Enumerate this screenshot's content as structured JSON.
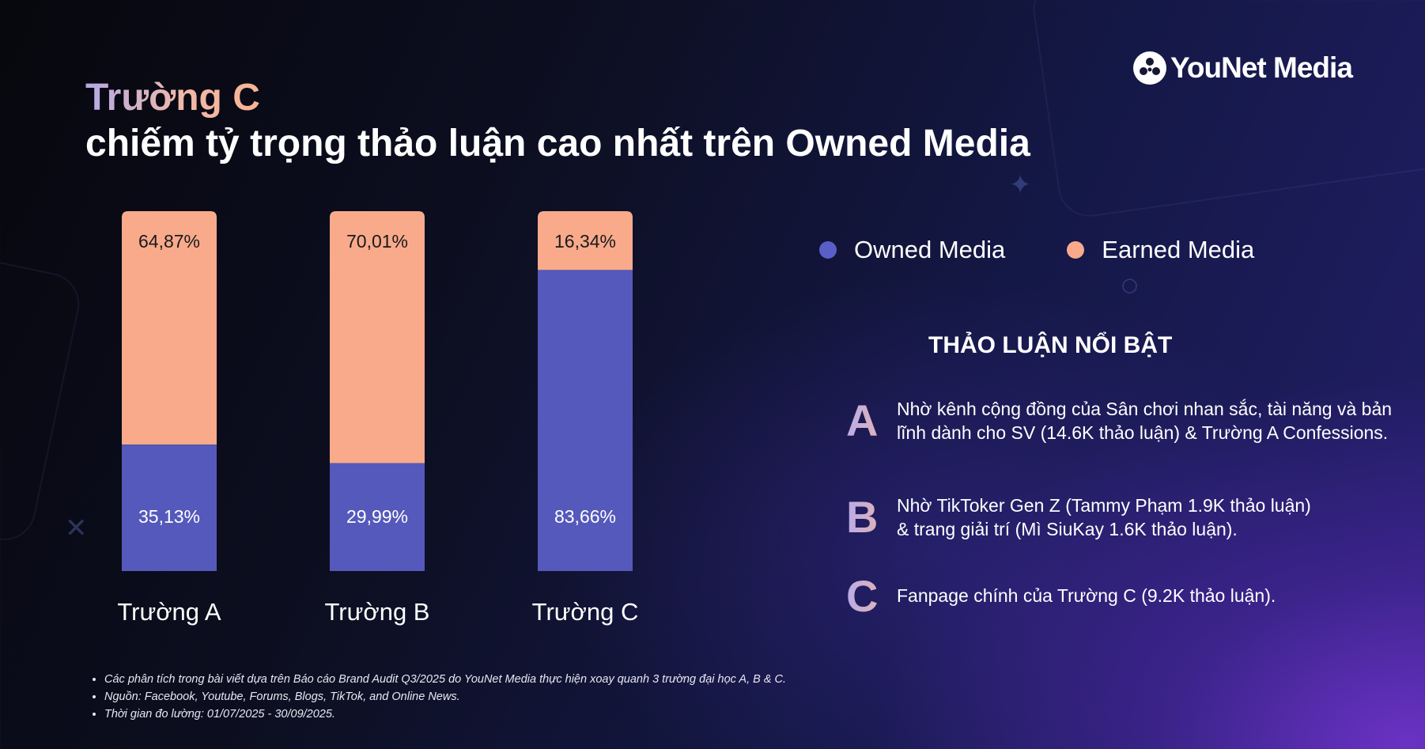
{
  "brand": {
    "logo_text": "YouNet Media"
  },
  "title": {
    "line1": "Trường C",
    "line2": "chiếm tỷ trọng thảo luận cao nhất trên Owned Media"
  },
  "colors": {
    "owned": "#5559bb",
    "earned": "#f8aa8b",
    "owned_label": "#ffffff",
    "earned_label": "#1a1a1a"
  },
  "legend": [
    {
      "label": "Owned Media",
      "color": "#5a5fc8"
    },
    {
      "label": "Earned Media",
      "color": "#f8aa8b"
    }
  ],
  "chart_data": {
    "type": "bar",
    "stacked": true,
    "normalized_percent": true,
    "categories": [
      "Trường A",
      "Trường B",
      "Trường C"
    ],
    "series": [
      {
        "name": "Owned Media",
        "values": [
          35.13,
          29.99,
          83.66
        ],
        "labels": [
          "35,13%",
          "29,99%",
          "83,66%"
        ]
      },
      {
        "name": "Earned Media",
        "values": [
          64.87,
          70.01,
          16.34
        ],
        "labels": [
          "64,87%",
          "70,01%",
          "16,34%"
        ]
      }
    ],
    "ylim": [
      0,
      100
    ],
    "grid": false,
    "legend_position": "top-right"
  },
  "highlights": {
    "title": "THẢO LUẬN NỔI BẬT",
    "items": [
      {
        "letter": "A",
        "text": "Nhờ kênh cộng đồng của Sân chơi nhan sắc, tài năng và bản lĩnh dành cho SV (14.6K thảo luận) & Trường A Confessions."
      },
      {
        "letter": "B",
        "text": "Nhờ TikToker Gen Z (Tammy Phạm 1.9K thảo luận) & trang giải trí (Mì SiuKay 1.6K thảo luận)."
      },
      {
        "letter": "C",
        "text": "Fanpage chính của Trường C  (9.2K thảo luận)."
      }
    ]
  },
  "footnotes": [
    "Các phân tích trong bài viết dựa trên Báo cáo Brand Audit Q3/2025 do YouNet Media thực hiện xoay quanh 3 trường đại học A, B & C.",
    "Nguồn: Facebook, Youtube, Forums, Blogs, TikTok, and Online News.",
    "Thời gian đo lường: 01/07/2025 - 30/09/2025."
  ]
}
